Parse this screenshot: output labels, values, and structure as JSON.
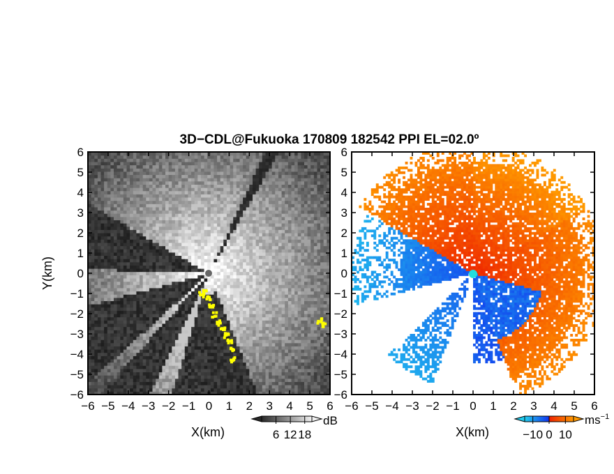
{
  "title": "3D−CDL@Fukuoka 170809 182542 PPI EL=02.0º",
  "chart_data": [
    {
      "type": "heatmap",
      "panel": "reflectivity",
      "xlabel": "X(km)",
      "ylabel": "Y(km)",
      "xlim": [
        -6,
        6
      ],
      "ylim": [
        -6,
        6
      ],
      "xticks": [
        "−6",
        "−5",
        "−4",
        "−3",
        "−2",
        "−1",
        "0",
        "1",
        "2",
        "3",
        "4",
        "5",
        "6"
      ],
      "yticks": [
        "−6",
        "−5",
        "−4",
        "−3",
        "−2",
        "−1",
        "0",
        "1",
        "2",
        "3",
        "4",
        "5",
        "6"
      ],
      "colorbar": {
        "unit": "dB",
        "ticks": [
          "6",
          "12",
          "18"
        ],
        "values": [
          6,
          12,
          18
        ],
        "range": [
          0,
          21
        ],
        "colormap": "grayscale"
      },
      "highlight_color": "#ffff00",
      "radar_marker_color": "#666666"
    },
    {
      "type": "heatmap",
      "panel": "doppler_velocity",
      "xlabel": "X(km)",
      "xlim": [
        -6,
        6
      ],
      "ylim": [
        -6,
        6
      ],
      "xticks": [
        "−6",
        "−5",
        "−4",
        "−3",
        "−2",
        "−1",
        "0",
        "1",
        "2",
        "3",
        "4",
        "5",
        "6"
      ],
      "yticks": [
        "−6",
        "−5",
        "−4",
        "−3",
        "−2",
        "−1",
        "0",
        "1",
        "2",
        "3",
        "4",
        "5",
        "6"
      ],
      "colorbar": {
        "unit": "ms",
        "unit_exp": "−1",
        "ticks": [
          "−10",
          "0",
          "10"
        ],
        "values": [
          -10,
          0,
          10
        ],
        "range": [
          -15,
          15
        ],
        "colors": [
          "#22ccee",
          "#1133ee",
          "#ee2200",
          "#ff9900"
        ]
      },
      "radar_marker_color": "#22dddd"
    }
  ]
}
